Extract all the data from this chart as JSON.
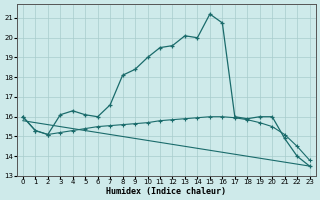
{
  "xlabel": "Humidex (Indice chaleur)",
  "xlim": [
    -0.5,
    23.5
  ],
  "ylim": [
    13,
    21.7
  ],
  "yticks": [
    13,
    14,
    15,
    16,
    17,
    18,
    19,
    20,
    21
  ],
  "xticks": [
    0,
    1,
    2,
    3,
    4,
    5,
    6,
    7,
    8,
    9,
    10,
    11,
    12,
    13,
    14,
    15,
    16,
    17,
    18,
    19,
    20,
    21,
    22,
    23
  ],
  "background_color": "#ceeaea",
  "grid_color": "#a8cccc",
  "line_color": "#1a6b6b",
  "series1_x": [
    0,
    1,
    2,
    3,
    4,
    5,
    6,
    7,
    8,
    9,
    10,
    11,
    12,
    13,
    14,
    15,
    16,
    17,
    18,
    19,
    20,
    21,
    22,
    23
  ],
  "series1_y": [
    16.0,
    15.3,
    15.1,
    16.1,
    16.3,
    16.1,
    16.0,
    16.6,
    18.1,
    18.4,
    19.0,
    19.5,
    19.6,
    20.1,
    20.0,
    21.2,
    20.75,
    16.0,
    15.9,
    16.0,
    16.0,
    14.9,
    14.0,
    13.5
  ],
  "series2_x": [
    0,
    1,
    2,
    3,
    4,
    5,
    6,
    7,
    8,
    9,
    10,
    11,
    12,
    13,
    14,
    15,
    16,
    17,
    18,
    19,
    20,
    21,
    22,
    23
  ],
  "series2_y": [
    16.0,
    15.3,
    15.1,
    15.2,
    15.3,
    15.4,
    15.5,
    15.55,
    15.6,
    15.65,
    15.7,
    15.8,
    15.85,
    15.9,
    15.95,
    16.0,
    16.0,
    15.95,
    15.85,
    15.7,
    15.5,
    15.1,
    14.5,
    13.8
  ],
  "series3_x": [
    0,
    23
  ],
  "series3_y": [
    15.8,
    13.5
  ]
}
